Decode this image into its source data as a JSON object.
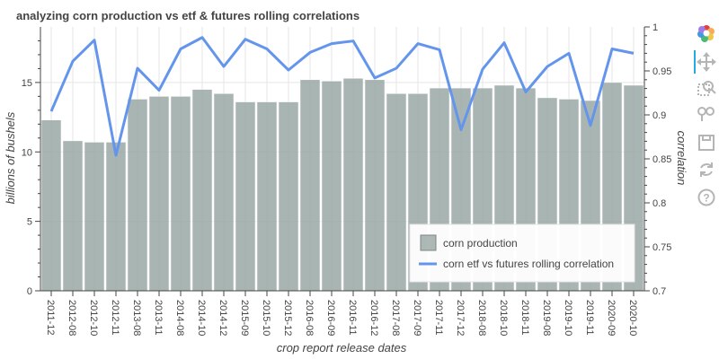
{
  "chart_data": {
    "type": "bar+line",
    "title": "analyzing corn production vs etf & futures rolling correlations",
    "xlabel": "crop report release dates",
    "ylabel": "billions of bushels",
    "y2label": "correlation",
    "categories": [
      "2011-12",
      "2012-08",
      "2012-10",
      "2012-11",
      "2013-08",
      "2013-11",
      "2014-08",
      "2014-10",
      "2014-12",
      "2015-09",
      "2015-10",
      "2015-12",
      "2016-08",
      "2016-09",
      "2016-11",
      "2016-12",
      "2017-08",
      "2017-09",
      "2017-11",
      "2017-12",
      "2018-08",
      "2018-10",
      "2018-11",
      "2019-08",
      "2019-10",
      "2019-11",
      "2020-09",
      "2020-10"
    ],
    "ylim": [
      0,
      19
    ],
    "y2lim": [
      0.7,
      1.0
    ],
    "yticks": [
      0,
      5,
      10,
      15
    ],
    "y2ticks": [
      0.7,
      0.75,
      0.8,
      0.85,
      0.9,
      0.95,
      1
    ],
    "grid": true,
    "legend_placement": "bottom-right",
    "series": [
      {
        "name": "corn production",
        "kind": "bar",
        "axis": "left",
        "color": "#9aa8a4",
        "values": [
          12.3,
          10.8,
          10.7,
          10.7,
          13.8,
          14.0,
          14.0,
          14.5,
          14.2,
          13.6,
          13.6,
          13.6,
          15.2,
          15.1,
          15.3,
          15.2,
          14.2,
          14.2,
          14.6,
          14.6,
          14.6,
          14.8,
          14.6,
          13.9,
          13.8,
          13.7,
          15.0,
          14.8
        ]
      },
      {
        "name": "corn etf vs futures rolling correlation",
        "kind": "line",
        "axis": "right",
        "color": "#6495ed",
        "values": [
          0.904,
          0.961,
          0.985,
          0.854,
          0.953,
          0.928,
          0.975,
          0.988,
          0.955,
          0.986,
          0.975,
          0.951,
          0.971,
          0.981,
          0.984,
          0.942,
          0.953,
          0.981,
          0.974,
          0.883,
          0.952,
          0.982,
          0.926,
          0.955,
          0.97,
          0.888,
          0.975,
          0.97
        ]
      }
    ]
  },
  "toolbar": {
    "tools": [
      "bokeh-logo-icon",
      "pan-icon",
      "box-zoom-icon",
      "wheel-zoom-icon",
      "save-icon",
      "reset-icon",
      "help-icon"
    ]
  }
}
